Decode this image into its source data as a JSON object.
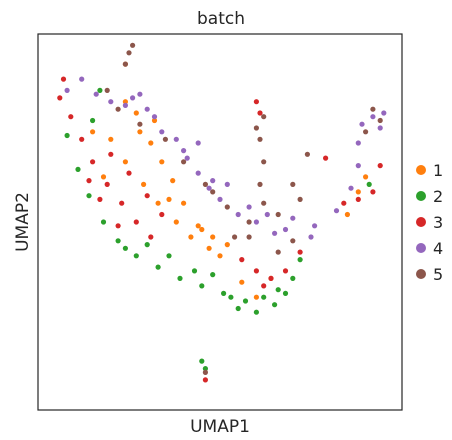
{
  "chart_data": {
    "type": "scatter",
    "title": "batch",
    "xlabel": "UMAP1",
    "ylabel": "UMAP2",
    "xlim": [
      0,
      100
    ],
    "ylim": [
      0,
      100
    ],
    "grid": false,
    "ticks": false,
    "legend": {
      "placement": "right",
      "entries": [
        {
          "label": "1",
          "color": "#ff7f0e"
        },
        {
          "label": "2",
          "color": "#2ca02c"
        },
        {
          "label": "3",
          "color": "#d62728"
        },
        {
          "label": "4",
          "color": "#9467bd"
        },
        {
          "label": "5",
          "color": "#8c564b"
        }
      ]
    },
    "series": [
      {
        "name": "1",
        "color": "#ff7f0e",
        "values": [
          [
            24,
            82
          ],
          [
            27,
            79
          ],
          [
            28,
            74
          ],
          [
            31,
            71
          ],
          [
            34,
            66
          ],
          [
            37,
            61
          ],
          [
            40,
            55
          ],
          [
            44,
            49
          ],
          [
            48,
            46
          ],
          [
            52,
            44
          ],
          [
            20,
            72
          ],
          [
            24,
            66
          ],
          [
            29,
            60
          ],
          [
            33,
            55
          ],
          [
            38,
            50
          ],
          [
            42,
            46
          ],
          [
            47,
            43
          ],
          [
            56,
            34
          ],
          [
            60,
            30
          ],
          [
            64,
            35
          ],
          [
            88,
            58
          ],
          [
            90,
            62
          ],
          [
            85,
            52
          ],
          [
            24,
            92
          ],
          [
            15,
            74
          ],
          [
            18,
            62
          ],
          [
            32,
            77
          ],
          [
            36,
            56
          ],
          [
            45,
            48
          ],
          [
            50,
            41
          ]
        ]
      },
      {
        "name": "2",
        "color": "#2ca02c",
        "values": [
          [
            8,
            73
          ],
          [
            11,
            64
          ],
          [
            14,
            57
          ],
          [
            18,
            50
          ],
          [
            22,
            45
          ],
          [
            27,
            41
          ],
          [
            33,
            38
          ],
          [
            39,
            35
          ],
          [
            45,
            33
          ],
          [
            51,
            31
          ],
          [
            57,
            29
          ],
          [
            62,
            30
          ],
          [
            66,
            32
          ],
          [
            70,
            35
          ],
          [
            72,
            40
          ],
          [
            36,
            41
          ],
          [
            43,
            37
          ],
          [
            55,
            27
          ],
          [
            60,
            26
          ],
          [
            65,
            28
          ],
          [
            91,
            60
          ],
          [
            46,
            11
          ],
          [
            45,
            13
          ],
          [
            17,
            85
          ],
          [
            15,
            77
          ],
          [
            30,
            44
          ],
          [
            48,
            36
          ],
          [
            68,
            31
          ],
          [
            53,
            30
          ],
          [
            24,
            43
          ]
        ]
      },
      {
        "name": "3",
        "color": "#d62728",
        "values": [
          [
            6,
            83
          ],
          [
            9,
            78
          ],
          [
            12,
            72
          ],
          [
            15,
            66
          ],
          [
            19,
            60
          ],
          [
            23,
            55
          ],
          [
            27,
            50
          ],
          [
            31,
            46
          ],
          [
            20,
            68
          ],
          [
            25,
            63
          ],
          [
            30,
            57
          ],
          [
            34,
            52
          ],
          [
            17,
            56
          ],
          [
            22,
            49
          ],
          [
            56,
            40
          ],
          [
            60,
            37
          ],
          [
            64,
            35
          ],
          [
            68,
            37
          ],
          [
            72,
            42
          ],
          [
            62,
            33
          ],
          [
            88,
            56
          ],
          [
            92,
            58
          ],
          [
            94,
            65
          ],
          [
            84,
            55
          ],
          [
            7,
            88
          ],
          [
            46,
            8
          ],
          [
            61,
            79
          ],
          [
            60,
            82
          ],
          [
            79,
            67
          ],
          [
            14,
            61
          ]
        ]
      },
      {
        "name": "4",
        "color": "#9467bd",
        "values": [
          [
            8,
            85
          ],
          [
            12,
            88
          ],
          [
            16,
            84
          ],
          [
            20,
            82
          ],
          [
            26,
            83
          ],
          [
            30,
            80
          ],
          [
            32,
            78
          ],
          [
            34,
            74
          ],
          [
            38,
            72
          ],
          [
            41,
            67
          ],
          [
            44,
            63
          ],
          [
            47,
            59
          ],
          [
            50,
            56
          ],
          [
            55,
            52
          ],
          [
            60,
            50
          ],
          [
            65,
            47
          ],
          [
            68,
            48
          ],
          [
            70,
            51
          ],
          [
            76,
            49
          ],
          [
            82,
            53
          ],
          [
            86,
            59
          ],
          [
            88,
            65
          ],
          [
            88,
            71
          ],
          [
            89,
            76
          ],
          [
            92,
            78
          ],
          [
            95,
            79
          ],
          [
            44,
            71
          ],
          [
            52,
            60
          ],
          [
            58,
            54
          ],
          [
            24,
            81
          ],
          [
            28,
            84
          ],
          [
            40,
            69
          ],
          [
            48,
            61
          ],
          [
            63,
            52
          ],
          [
            75,
            46
          ],
          [
            94,
            75
          ]
        ]
      },
      {
        "name": "5",
        "color": "#8c564b",
        "values": [
          [
            25,
            95
          ],
          [
            24,
            92
          ],
          [
            26,
            97
          ],
          [
            19,
            85
          ],
          [
            22,
            80
          ],
          [
            28,
            76
          ],
          [
            35,
            72
          ],
          [
            40,
            66
          ],
          [
            46,
            60
          ],
          [
            52,
            54
          ],
          [
            58,
            50
          ],
          [
            61,
            60
          ],
          [
            62,
            66
          ],
          [
            61,
            72
          ],
          [
            60,
            75
          ],
          [
            62,
            55
          ],
          [
            58,
            46
          ],
          [
            66,
            52
          ],
          [
            70,
            45
          ],
          [
            66,
            42
          ],
          [
            70,
            60
          ],
          [
            48,
            58
          ],
          [
            54,
            46
          ],
          [
            72,
            56
          ],
          [
            94,
            77
          ],
          [
            92,
            80
          ],
          [
            90,
            74
          ],
          [
            46,
            10
          ],
          [
            62,
            78
          ],
          [
            74,
            68
          ]
        ]
      }
    ]
  }
}
